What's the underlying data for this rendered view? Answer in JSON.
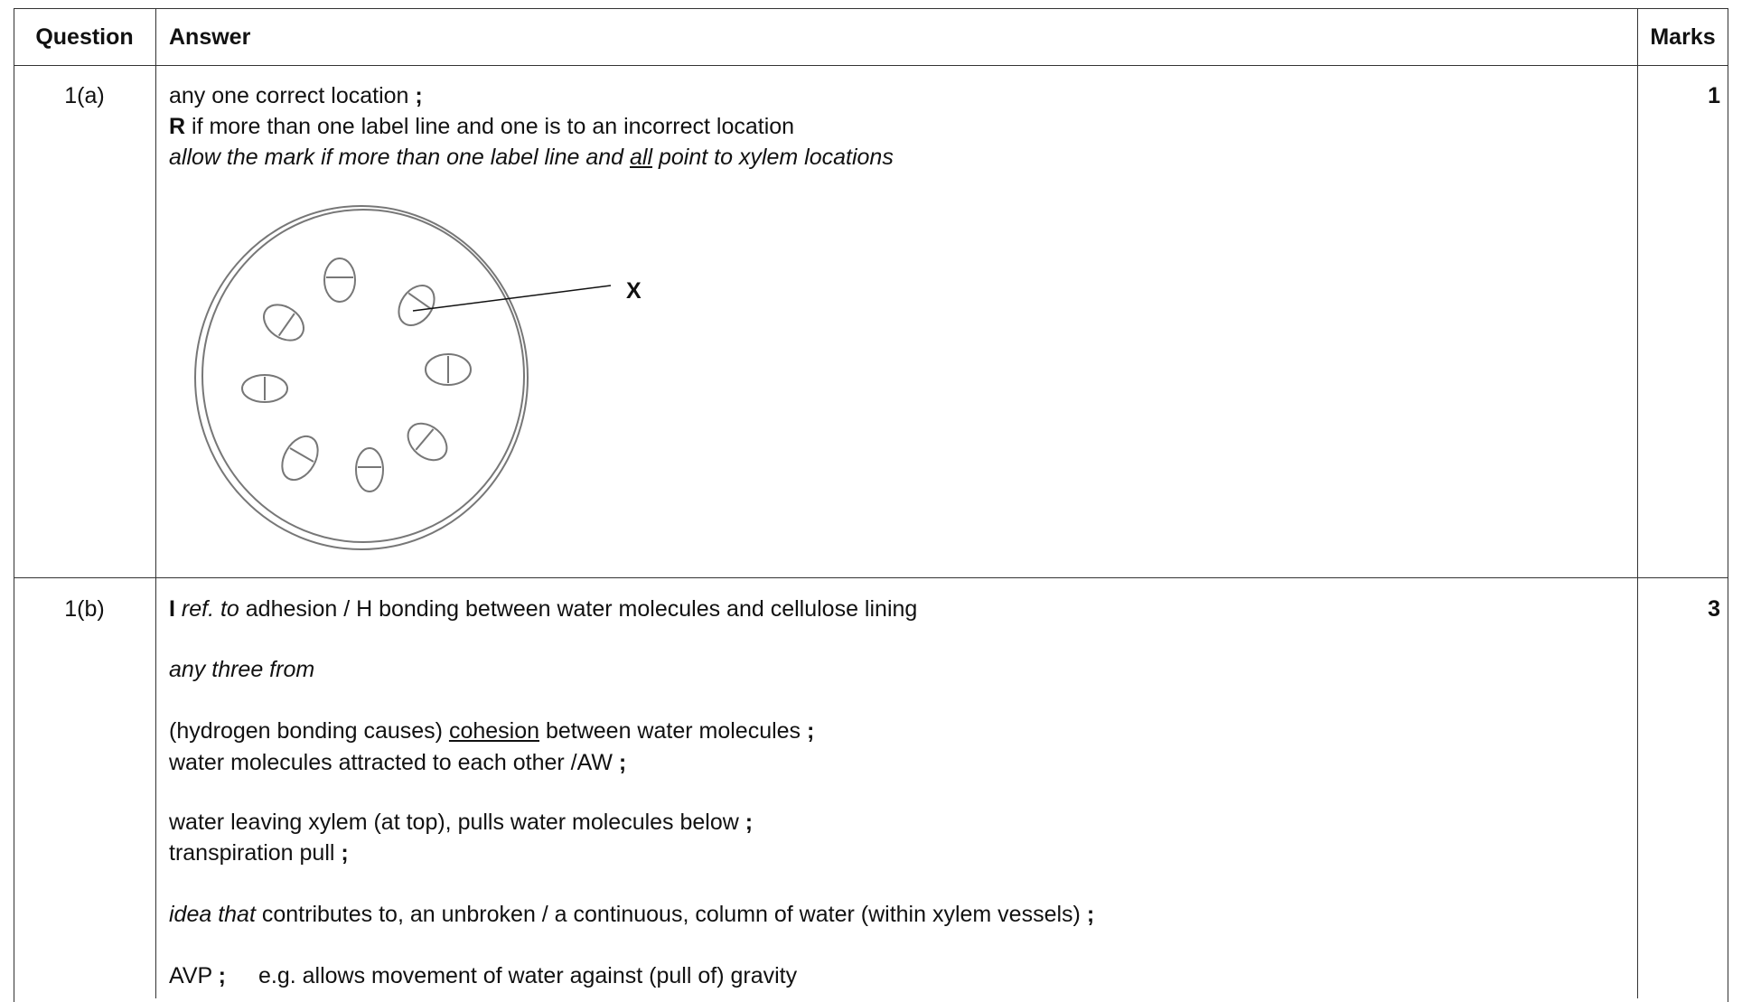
{
  "table": {
    "header": [
      "Question",
      "Answer",
      "Marks"
    ],
    "rows": [
      {
        "question": "1(a)",
        "answer": [
          [
            "any one correct location ",
            ";"
          ],
          [
            "R",
            " if more than one label line and one is to an incorrect location"
          ],
          [
            "allow the mark if more than one label line and ",
            "all",
            " point to xylem locations"
          ]
        ],
        "diagram_label": "X",
        "marks": 1
      },
      {
        "question": "1(b)",
        "answer": [
          [
            "I",
            " ref. to",
            " adhesion / H bonding between water molecules and cellulose lining"
          ],
          [
            "any three from"
          ],
          [
            "(hydrogen bonding causes) ",
            "cohesion",
            " between water molecules ",
            ";"
          ],
          [
            "water molecules attracted to each other /AW ",
            ";"
          ],
          [
            "water leaving xylem (at top), pulls water molecules below ",
            ";"
          ],
          [
            "transpiration pull ",
            ";"
          ],
          [
            "idea that",
            " contributes to, an unbroken / a continuous, column of water (within xylem vessels) ",
            ";"
          ],
          [
            "AVP ",
            ";",
            "e.g. allows movement of water against (pull of) gravity"
          ]
        ],
        "marks": 3
      }
    ]
  }
}
